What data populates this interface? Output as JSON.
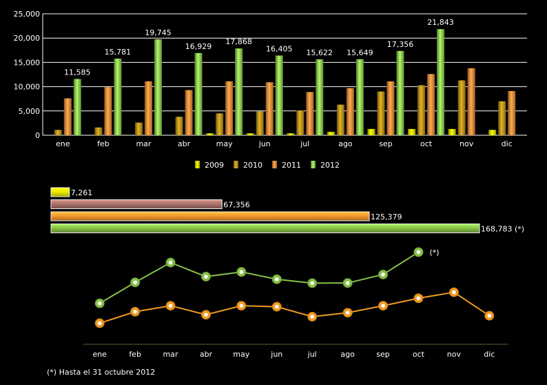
{
  "chart_data": [
    {
      "type": "bar",
      "categories": [
        "ene",
        "feb",
        "mar",
        "abr",
        "may",
        "jun",
        "jul",
        "ago",
        "sep",
        "oct",
        "nov",
        "dic"
      ],
      "ylim": [
        0,
        25000
      ],
      "yticks": [
        "0",
        "5,000",
        "10,000",
        "15,000",
        "20,000",
        "25,000"
      ],
      "ytick_values": [
        0,
        5000,
        10000,
        15000,
        20000,
        25000
      ],
      "series": [
        {
          "name": "2009",
          "color": "#e8e800",
          "values": [
            0,
            0,
            0,
            0,
            400,
            400,
            400,
            700,
            1300,
            1300,
            1300,
            1100
          ]
        },
        {
          "name": "2010",
          "color": "#b8901c",
          "values": [
            1100,
            1600,
            2600,
            3800,
            4500,
            4900,
            5100,
            6300,
            9000,
            10300,
            11300,
            7000
          ]
        },
        {
          "name": "2011",
          "color": "#f08a3c",
          "values": [
            7600,
            9900,
            11100,
            9300,
            11100,
            10900,
            8900,
            9700,
            11100,
            12600,
            13800,
            9100
          ]
        },
        {
          "name": "2012",
          "color": "#8cc850",
          "values": [
            11585,
            15781,
            19745,
            16929,
            17868,
            16405,
            15622,
            15649,
            17356,
            21843,
            null,
            null
          ]
        }
      ],
      "data_labels": [
        "11,585",
        "15,781",
        "19,745",
        "16,929",
        "17,868",
        "16,405",
        "15,622",
        "15,649",
        "17,356",
        "21,843"
      ],
      "legend": [
        "2009",
        "2010",
        "2011",
        "2012"
      ]
    },
    {
      "type": "bar",
      "orientation": "horizontal",
      "series": [
        {
          "name": "2009",
          "value": 7261,
          "label": "7,261",
          "color": "#e8e800"
        },
        {
          "name": "2010",
          "value": 67356,
          "label": "67,356",
          "color": "#a8706a"
        },
        {
          "name": "2011",
          "value": 125379,
          "label": "125,379",
          "color": "#f0962c"
        },
        {
          "name": "2012",
          "value": 168783,
          "label": "168,783 (*)",
          "color": "#86c048"
        }
      ],
      "xlim": [
        0,
        168783
      ]
    },
    {
      "type": "line",
      "categories": [
        "ene",
        "feb",
        "mar",
        "abr",
        "may",
        "jun",
        "jul",
        "ago",
        "sep",
        "oct",
        "nov",
        "dic"
      ],
      "series": [
        {
          "name": "2012",
          "color": "#86c048",
          "values": [
            11585,
            15781,
            19745,
            16929,
            17868,
            16405,
            15622,
            15649,
            17356,
            21843,
            null,
            null
          ]
        },
        {
          "name": "2011",
          "color": "#f09a20",
          "values": [
            7600,
            9900,
            11100,
            9300,
            11100,
            10900,
            8900,
            9700,
            11100,
            12600,
            13800,
            9100
          ]
        }
      ],
      "ylim": [
        6000,
        23000
      ],
      "annotation": "(*)"
    }
  ],
  "footnote": "(*) Hasta el 31 octubre 2012"
}
